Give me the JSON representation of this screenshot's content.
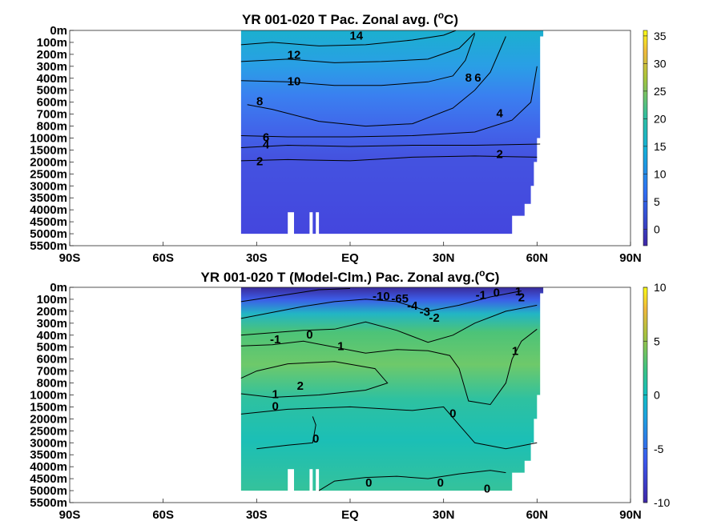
{
  "chart_data": [
    {
      "type": "heatmap",
      "title_parts": [
        "YR 001-020 T Pac. Zonal avg. (",
        "o",
        "C)"
      ],
      "x_ticks": [
        "90S",
        "60S",
        "30S",
        "EQ",
        "30N",
        "60N",
        "90N"
      ],
      "x_values": [
        -90,
        -60,
        -30,
        0,
        30,
        60,
        90
      ],
      "xlim": [
        -90,
        90
      ],
      "y_ticks": [
        "0m",
        "100m",
        "200m",
        "300m",
        "400m",
        "500m",
        "600m",
        "700m",
        "800m",
        "1000m",
        "1500m",
        "2000m",
        "2500m",
        "3000m",
        "3500m",
        "4000m",
        "4500m",
        "5000m",
        "5500m"
      ],
      "y_scale": "nonuniform-depth",
      "colorbar": {
        "ticks": [
          "35",
          "30",
          "25",
          "20",
          "15",
          "10",
          "5",
          "0"
        ],
        "values": [
          35,
          30,
          25,
          20,
          15,
          10,
          5,
          0
        ],
        "range": [
          -3,
          36
        ]
      },
      "data_extent_lat": [
        -35,
        62
      ],
      "contour_labels": [
        {
          "text": "14",
          "lat": 2,
          "depth_index": 0.5
        },
        {
          "text": "12",
          "lat": -18,
          "depth_index": 2.1
        },
        {
          "text": "10",
          "lat": -18,
          "depth_index": 4.3
        },
        {
          "text": "8",
          "lat": -29,
          "depth_index": 6.0
        },
        {
          "text": "8",
          "lat": 38,
          "depth_index": 4.0
        },
        {
          "text": "6",
          "lat": 41,
          "depth_index": 4.0
        },
        {
          "text": "4",
          "lat": 48,
          "depth_index": 7.0
        },
        {
          "text": "6",
          "lat": -27,
          "depth_index": 9.0
        },
        {
          "text": "4",
          "lat": -27,
          "depth_index": 9.6
        },
        {
          "text": "2",
          "lat": -29,
          "depth_index": 11.0
        },
        {
          "text": "2",
          "lat": 48,
          "depth_index": 10.4
        }
      ]
    },
    {
      "type": "heatmap",
      "title_parts": [
        "YR 001-020 T (Model-Clm.) Pac. Zonal avg.(",
        "o",
        "C)"
      ],
      "x_ticks": [
        "90S",
        "60S",
        "30S",
        "EQ",
        "30N",
        "60N",
        "90N"
      ],
      "x_values": [
        -90,
        -60,
        -30,
        0,
        30,
        60,
        90
      ],
      "xlim": [
        -90,
        90
      ],
      "y_ticks": [
        "0m",
        "100m",
        "200m",
        "300m",
        "400m",
        "500m",
        "600m",
        "700m",
        "800m",
        "1000m",
        "1500m",
        "2000m",
        "2500m",
        "3000m",
        "3500m",
        "4000m",
        "4500m",
        "5000m",
        "5500m"
      ],
      "y_scale": "nonuniform-depth",
      "colorbar": {
        "ticks": [
          "10",
          "5",
          "0",
          "-5",
          "-10"
        ],
        "values": [
          10,
          5,
          0,
          -5,
          -10
        ],
        "range": [
          -10,
          10
        ]
      },
      "data_extent_lat": [
        -35,
        62
      ],
      "contour_labels": [
        {
          "text": "-10",
          "lat": 10,
          "depth_index": 0.8
        },
        {
          "text": "-65",
          "lat": 16,
          "depth_index": 1.0
        },
        {
          "text": "-4",
          "lat": 20,
          "depth_index": 1.6
        },
        {
          "text": "-3",
          "lat": 24,
          "depth_index": 2.1
        },
        {
          "text": "-2",
          "lat": 27,
          "depth_index": 2.6
        },
        {
          "text": "-1",
          "lat": 42,
          "depth_index": 0.7
        },
        {
          "text": "0",
          "lat": 47,
          "depth_index": 0.5
        },
        {
          "text": "1",
          "lat": 54,
          "depth_index": 0.4
        },
        {
          "text": "2",
          "lat": 55,
          "depth_index": 0.9
        },
        {
          "text": "-1",
          "lat": -24,
          "depth_index": 4.4
        },
        {
          "text": "0",
          "lat": -13,
          "depth_index": 4.0
        },
        {
          "text": "1",
          "lat": -3,
          "depth_index": 5.0
        },
        {
          "text": "1",
          "lat": 53,
          "depth_index": 5.4
        },
        {
          "text": "2",
          "lat": -16,
          "depth_index": 8.3
        },
        {
          "text": "1",
          "lat": -24,
          "depth_index": 9.0
        },
        {
          "text": "0",
          "lat": -24,
          "depth_index": 10.0
        },
        {
          "text": "0",
          "lat": -11,
          "depth_index": 12.7
        },
        {
          "text": "0",
          "lat": 33,
          "depth_index": 10.6
        },
        {
          "text": "0",
          "lat": 6,
          "depth_index": 16.4
        },
        {
          "text": "0",
          "lat": 29,
          "depth_index": 16.4
        },
        {
          "text": "0",
          "lat": 44,
          "depth_index": 16.9
        }
      ]
    }
  ]
}
